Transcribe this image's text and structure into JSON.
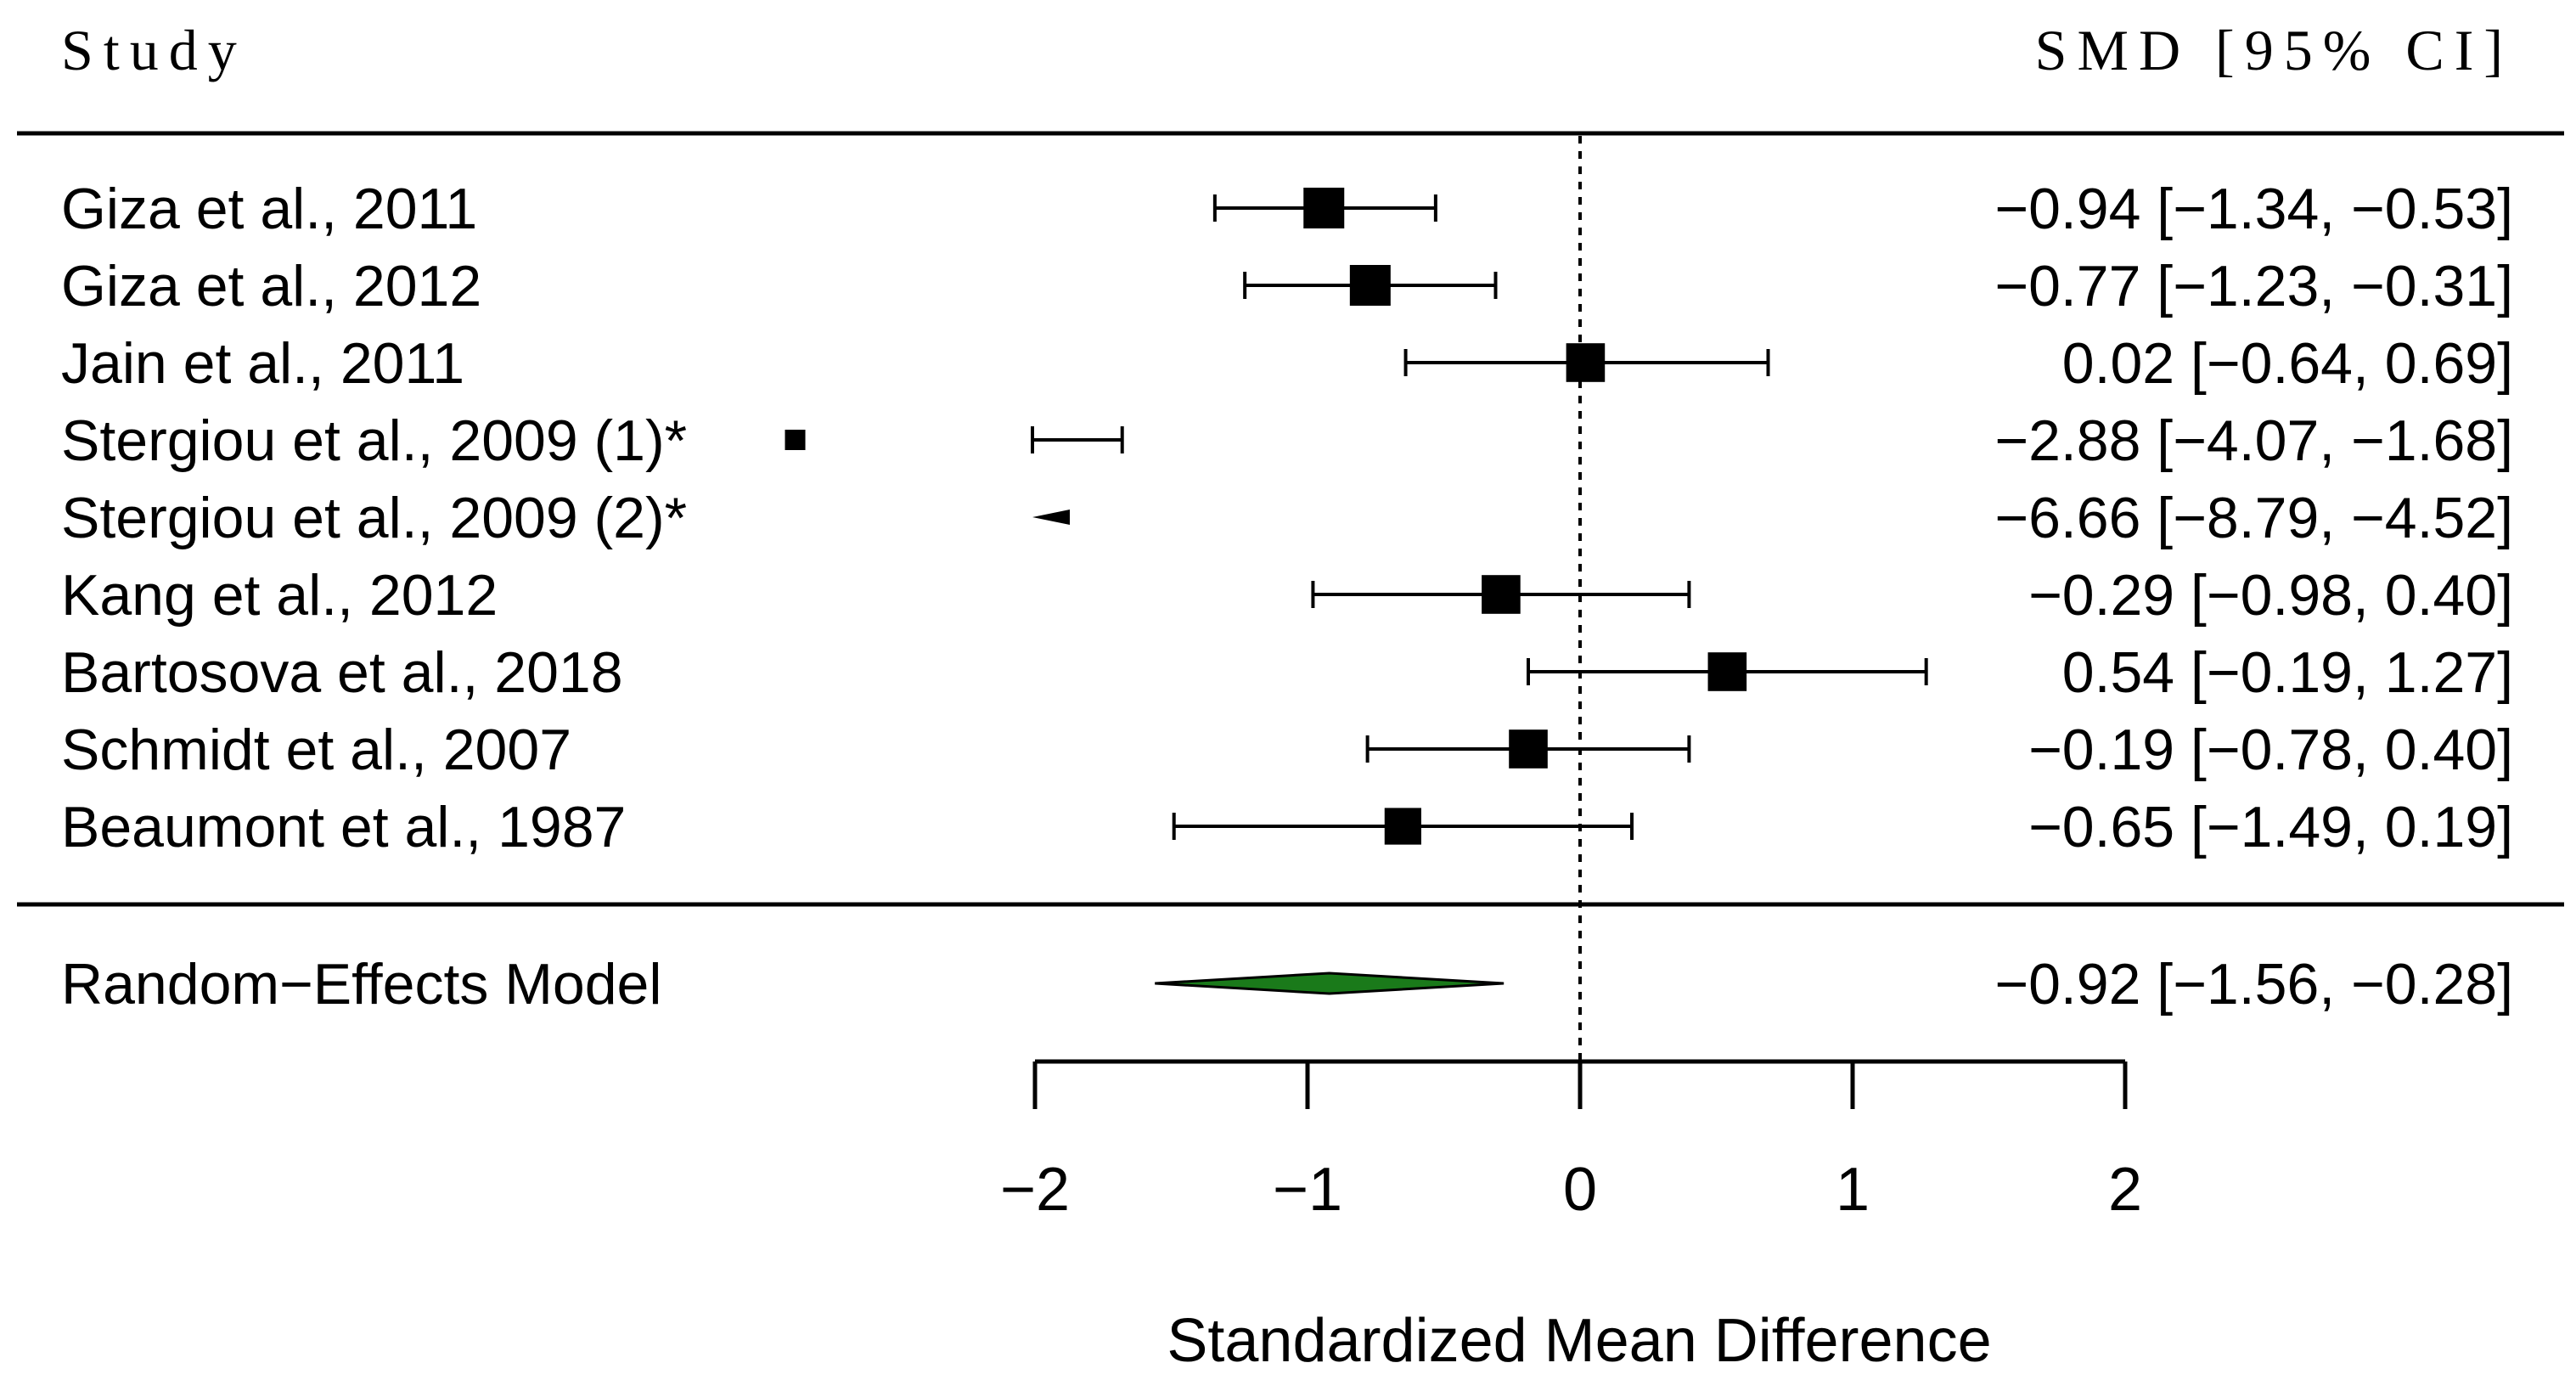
{
  "chart_data": {
    "type": "forest",
    "header": {
      "study": "Study",
      "effect": "SMD [95% CI]"
    },
    "xlabel": "Standardized Mean Difference",
    "xlim": [
      -2,
      2
    ],
    "xticks": [
      "−2",
      "−1",
      "0",
      "1",
      "2"
    ],
    "tick_values": [
      -2,
      -1,
      0,
      1,
      2
    ],
    "reference_line": 0,
    "studies": [
      {
        "label": "Giza et al., 2011",
        "est": -0.94,
        "lo": -1.34,
        "hi": -0.53,
        "weight": 1.0,
        "text": "−0.94 [−1.34, −0.53]"
      },
      {
        "label": "Giza et al., 2012",
        "est": -0.77,
        "lo": -1.23,
        "hi": -0.31,
        "weight": 1.0,
        "text": "−0.77 [−1.23, −0.31]"
      },
      {
        "label": "Jain et al., 2011",
        "est": 0.02,
        "lo": -0.64,
        "hi": 0.69,
        "weight": 0.95,
        "text": "0.02 [−0.64,  0.69]"
      },
      {
        "label": "Stergiou et al., 2009 (1)*",
        "est": -2.88,
        "lo": -4.07,
        "hi": -1.68,
        "weight": 0.5,
        "text": "−2.88 [−4.07, −1.68]"
      },
      {
        "label": "Stergiou et al., 2009 (2)*",
        "est": -6.66,
        "lo": -8.79,
        "hi": -4.52,
        "weight": 0.3,
        "text": "−6.66 [−8.79, −4.52]"
      },
      {
        "label": "Kang et al., 2012",
        "est": -0.29,
        "lo": -0.98,
        "hi": 0.4,
        "weight": 0.95,
        "text": "−0.29 [−0.98,  0.40]"
      },
      {
        "label": "Bartosova et al., 2018",
        "est": 0.54,
        "lo": -0.19,
        "hi": 1.27,
        "weight": 0.95,
        "text": "0.54 [−0.19,  1.27]"
      },
      {
        "label": "Schmidt et al., 2007",
        "est": -0.19,
        "lo": -0.78,
        "hi": 0.4,
        "weight": 0.95,
        "text": "−0.19 [−0.78,  0.40]"
      },
      {
        "label": "Beaumont et al., 1987",
        "est": -0.65,
        "lo": -1.49,
        "hi": 0.19,
        "weight": 0.9,
        "text": "−0.65 [−1.49,  0.19]"
      }
    ],
    "summary": {
      "label": "Random−Effects Model",
      "est": -0.92,
      "lo": -1.56,
      "hi": -0.28,
      "text": "−0.92 [−1.56, −0.28]",
      "color": "#1a7a1a"
    }
  }
}
